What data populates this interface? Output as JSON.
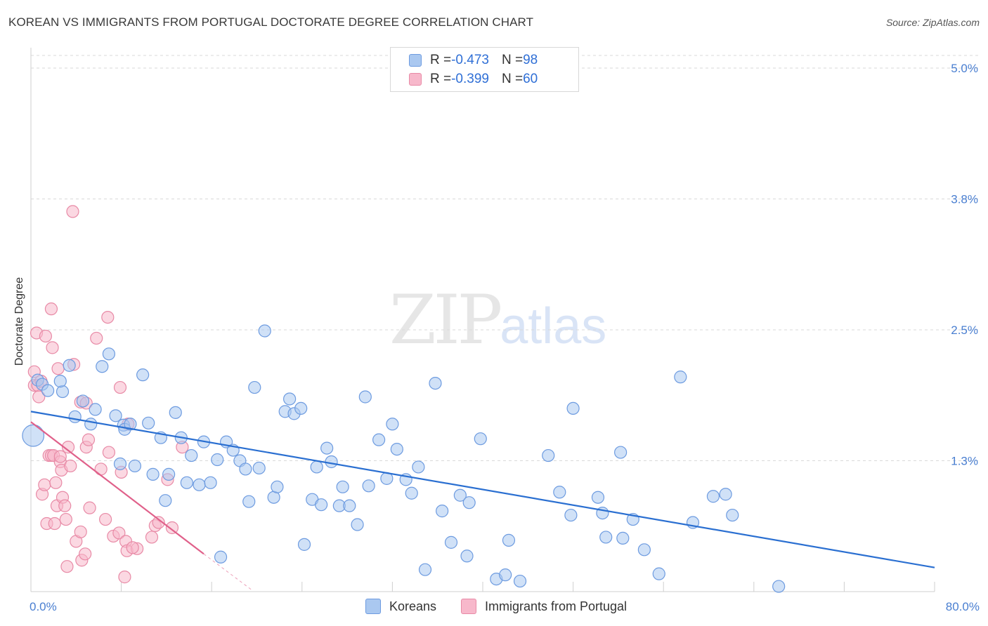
{
  "header": {
    "title": "KOREAN VS IMMIGRANTS FROM PORTUGAL DOCTORATE DEGREE CORRELATION CHART",
    "source": "Source: ZipAtlas.com"
  },
  "watermark": {
    "zip": "ZIP",
    "atlas": "atlas"
  },
  "legend": {
    "koreans": {
      "r_label": "R = ",
      "r_value": "-0.473",
      "n_label": "N = ",
      "n_value": "98"
    },
    "portugal": {
      "r_label": "R = ",
      "r_value": "-0.399",
      "n_label": "N = ",
      "n_value": "60"
    }
  },
  "bottom_legend": {
    "koreans": "Koreans",
    "portugal": "Immigrants from Portugal"
  },
  "colors": {
    "blue_fill": "#aac8f0",
    "blue_stroke": "#6d9be0",
    "blue_line": "#2a6fd1",
    "pink_fill": "#f7b8cb",
    "pink_stroke": "#e88aa6",
    "pink_line": "#e0608a",
    "grid": "#d9d9d9",
    "tick_text": "#4a7fd1"
  },
  "chart_data": {
    "type": "scatter",
    "title": "KOREAN VS IMMIGRANTS FROM PORTUGAL DOCTORATE DEGREE CORRELATION CHART",
    "xlabel": "",
    "ylabel": "Doctorate Degree",
    "xlim": [
      0,
      80
    ],
    "ylim": [
      0,
      5.3
    ],
    "x_tick_labels": [
      {
        "value": 0,
        "label": "0.0%"
      },
      {
        "value": 80,
        "label": "80.0%"
      }
    ],
    "y_tick_labels": [
      {
        "value": 1.25,
        "label": "1.3%"
      },
      {
        "value": 2.5,
        "label": "2.5%"
      },
      {
        "value": 3.75,
        "label": "3.8%"
      },
      {
        "value": 5.0,
        "label": "5.0%"
      }
    ],
    "series": [
      {
        "name": "Koreans",
        "trend": {
          "x": [
            0,
            80
          ],
          "y": [
            1.72,
            0.23
          ]
        },
        "points": [
          [
            0.2,
            1.49,
            1.8
          ],
          [
            0.6,
            2.02,
            1.0
          ],
          [
            1.0,
            1.98,
            1.0
          ],
          [
            1.5,
            1.92,
            1.0
          ],
          [
            2.8,
            1.91,
            1.0
          ],
          [
            2.6,
            2.01,
            1.0
          ],
          [
            3.4,
            2.16,
            1.0
          ],
          [
            3.9,
            1.67,
            1.0
          ],
          [
            4.6,
            1.82,
            1.0
          ],
          [
            5.3,
            1.6,
            1.0
          ],
          [
            5.7,
            1.74,
            1.0
          ],
          [
            6.3,
            2.15,
            1.0
          ],
          [
            6.9,
            2.27,
            1.0
          ],
          [
            7.5,
            1.68,
            1.0
          ],
          [
            7.9,
            1.22,
            1.0
          ],
          [
            8.2,
            1.59,
            1.0
          ],
          [
            8.3,
            1.55,
            1.0
          ],
          [
            8.8,
            1.6,
            1.0
          ],
          [
            9.2,
            1.2,
            1.0
          ],
          [
            9.9,
            2.07,
            1.0
          ],
          [
            10.4,
            1.61,
            1.0
          ],
          [
            10.8,
            1.12,
            1.0
          ],
          [
            11.5,
            1.47,
            1.0
          ],
          [
            11.9,
            0.87,
            1.0
          ],
          [
            12.2,
            1.12,
            1.0
          ],
          [
            12.8,
            1.71,
            1.0
          ],
          [
            13.3,
            1.47,
            1.0
          ],
          [
            13.8,
            1.04,
            1.0
          ],
          [
            14.2,
            1.3,
            1.0
          ],
          [
            14.9,
            1.02,
            1.0
          ],
          [
            15.3,
            1.43,
            1.0
          ],
          [
            15.9,
            1.04,
            1.0
          ],
          [
            16.5,
            1.26,
            1.0
          ],
          [
            16.8,
            0.33,
            1.0
          ],
          [
            17.3,
            1.43,
            1.0
          ],
          [
            17.9,
            1.35,
            1.0
          ],
          [
            18.5,
            1.25,
            1.0
          ],
          [
            19.0,
            1.17,
            1.0
          ],
          [
            19.3,
            0.86,
            1.0
          ],
          [
            19.8,
            1.95,
            1.0
          ],
          [
            20.2,
            1.18,
            1.0
          ],
          [
            20.7,
            2.49,
            1.0
          ],
          [
            21.5,
            0.9,
            1.0
          ],
          [
            21.8,
            1.0,
            1.0
          ],
          [
            22.5,
            1.72,
            1.0
          ],
          [
            22.9,
            1.84,
            1.0
          ],
          [
            23.3,
            1.7,
            1.0
          ],
          [
            23.9,
            1.75,
            1.0
          ],
          [
            24.2,
            0.45,
            1.0
          ],
          [
            24.9,
            0.88,
            1.0
          ],
          [
            25.3,
            1.19,
            1.0
          ],
          [
            25.7,
            0.83,
            1.0
          ],
          [
            26.2,
            1.37,
            1.0
          ],
          [
            26.6,
            1.24,
            1.0
          ],
          [
            27.3,
            0.82,
            1.0
          ],
          [
            27.6,
            1.0,
            1.0
          ],
          [
            28.2,
            0.82,
            1.0
          ],
          [
            28.9,
            0.64,
            1.0
          ],
          [
            29.6,
            1.86,
            1.0
          ],
          [
            29.9,
            1.01,
            1.0
          ],
          [
            30.8,
            1.45,
            1.0
          ],
          [
            31.5,
            1.08,
            1.0
          ],
          [
            32.0,
            1.6,
            1.0
          ],
          [
            32.4,
            1.36,
            1.0
          ],
          [
            33.2,
            1.07,
            1.0
          ],
          [
            33.7,
            0.94,
            1.0
          ],
          [
            34.3,
            1.19,
            1.0
          ],
          [
            34.9,
            0.21,
            1.0
          ],
          [
            35.8,
            1.99,
            1.0
          ],
          [
            36.4,
            0.77,
            1.0
          ],
          [
            37.2,
            0.47,
            1.0
          ],
          [
            38.0,
            0.92,
            1.0
          ],
          [
            38.6,
            0.34,
            1.0
          ],
          [
            38.8,
            0.85,
            1.0
          ],
          [
            39.8,
            1.46,
            1.0
          ],
          [
            41.2,
            0.12,
            1.0
          ],
          [
            42.0,
            0.16,
            1.0
          ],
          [
            42.3,
            0.49,
            1.0
          ],
          [
            43.3,
            0.1,
            1.0
          ],
          [
            45.8,
            1.3,
            1.0
          ],
          [
            46.8,
            0.95,
            1.0
          ],
          [
            48.0,
            1.75,
            1.0
          ],
          [
            47.8,
            0.73,
            1.0
          ],
          [
            50.2,
            0.9,
            1.0
          ],
          [
            50.6,
            0.75,
            1.0
          ],
          [
            50.9,
            0.52,
            1.0
          ],
          [
            52.2,
            1.33,
            1.0
          ],
          [
            52.4,
            0.51,
            1.0
          ],
          [
            53.3,
            0.69,
            1.0
          ],
          [
            54.3,
            0.4,
            1.0
          ],
          [
            55.6,
            0.17,
            1.0
          ],
          [
            57.5,
            2.05,
            1.0
          ],
          [
            58.6,
            0.66,
            1.0
          ],
          [
            60.4,
            0.91,
            1.0
          ],
          [
            61.5,
            0.93,
            1.0
          ],
          [
            62.1,
            0.73,
            1.0
          ],
          [
            66.2,
            0.05,
            1.0
          ]
        ]
      },
      {
        "name": "Immigrants from Portugal",
        "trend": {
          "x": [
            0,
            15.3
          ],
          "y": [
            1.62,
            0.36
          ]
        },
        "trend_dashed": {
          "x": [
            15.3,
            19.5
          ],
          "y": [
            0.36,
            0.02
          ]
        },
        "points": [
          [
            0.3,
            1.97,
            1.0
          ],
          [
            0.3,
            2.1,
            1.0
          ],
          [
            0.5,
            2.47,
            1.0
          ],
          [
            0.6,
            1.97,
            1.0
          ],
          [
            0.7,
            1.86,
            1.0
          ],
          [
            0.9,
            2.01,
            1.0
          ],
          [
            1.0,
            0.93,
            1.0
          ],
          [
            1.2,
            1.02,
            1.0
          ],
          [
            1.3,
            2.44,
            1.0
          ],
          [
            1.4,
            0.65,
            1.0
          ],
          [
            1.6,
            1.3,
            1.0
          ],
          [
            1.8,
            1.3,
            1.0
          ],
          [
            1.8,
            2.7,
            1.0
          ],
          [
            1.9,
            2.33,
            1.0
          ],
          [
            2.0,
            1.3,
            1.0
          ],
          [
            2.1,
            0.65,
            1.0
          ],
          [
            2.2,
            1.04,
            1.0
          ],
          [
            2.3,
            0.82,
            1.0
          ],
          [
            2.4,
            2.13,
            1.0
          ],
          [
            2.6,
            1.24,
            1.0
          ],
          [
            2.6,
            1.29,
            1.0
          ],
          [
            2.7,
            1.16,
            1.0
          ],
          [
            2.8,
            0.9,
            1.0
          ],
          [
            3.0,
            0.82,
            1.0
          ],
          [
            3.1,
            0.69,
            1.0
          ],
          [
            3.2,
            0.24,
            1.0
          ],
          [
            3.3,
            1.38,
            1.0
          ],
          [
            3.5,
            1.2,
            1.0
          ],
          [
            3.7,
            3.63,
            1.0
          ],
          [
            3.8,
            2.17,
            1.0
          ],
          [
            4.0,
            0.48,
            1.0
          ],
          [
            4.4,
            1.81,
            1.0
          ],
          [
            4.4,
            0.57,
            1.0
          ],
          [
            4.5,
            0.3,
            1.0
          ],
          [
            4.8,
            0.36,
            1.0
          ],
          [
            4.9,
            1.8,
            1.0
          ],
          [
            4.9,
            1.38,
            1.0
          ],
          [
            5.1,
            1.45,
            1.0
          ],
          [
            5.2,
            0.8,
            1.0
          ],
          [
            5.8,
            2.42,
            1.0
          ],
          [
            6.2,
            1.17,
            1.0
          ],
          [
            6.6,
            0.69,
            1.0
          ],
          [
            6.8,
            2.62,
            1.0
          ],
          [
            6.9,
            1.33,
            1.0
          ],
          [
            7.3,
            0.53,
            1.0
          ],
          [
            7.8,
            0.56,
            1.0
          ],
          [
            7.9,
            1.95,
            1.0
          ],
          [
            8.0,
            1.14,
            1.0
          ],
          [
            8.3,
            0.14,
            1.0
          ],
          [
            8.4,
            0.48,
            1.0
          ],
          [
            8.5,
            0.39,
            1.0
          ],
          [
            8.6,
            1.6,
            1.0
          ],
          [
            9.4,
            0.41,
            1.0
          ],
          [
            10.7,
            0.52,
            1.0
          ],
          [
            11.0,
            0.63,
            1.0
          ],
          [
            11.3,
            0.66,
            1.0
          ],
          [
            12.1,
            1.07,
            1.0
          ],
          [
            12.5,
            0.61,
            1.0
          ],
          [
            13.4,
            1.38,
            1.0
          ],
          [
            9.0,
            0.42,
            1.0
          ]
        ]
      }
    ]
  }
}
